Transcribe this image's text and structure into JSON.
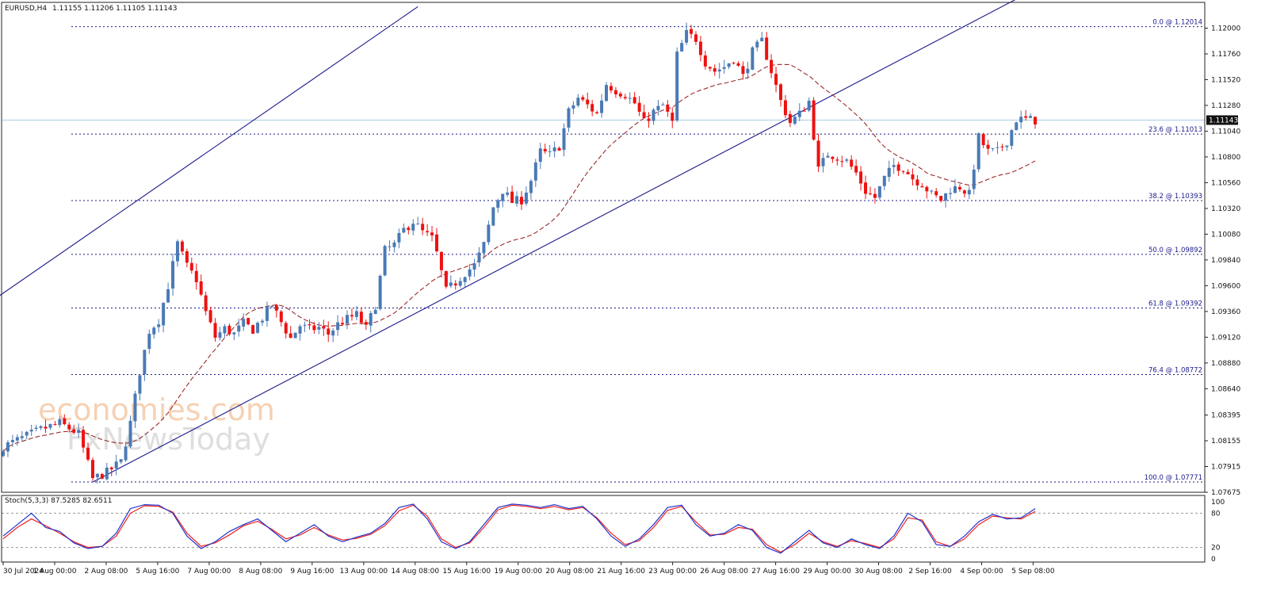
{
  "header": {
    "symbol": "EURUSD,H4",
    "ohlc": "1.11155 1.11206 1.11105 1.11143"
  },
  "watermark": {
    "line1": "economies.com",
    "line2": "FxNewsToday"
  },
  "colors": {
    "bull": "#4a7ab5",
    "bear": "#ee1111",
    "channel": "#1a1a8a",
    "fib": "#1a1a8a",
    "ma": "#9b2b2b",
    "stoch_main": "#2233cc",
    "stoch_signal": "#ee2222",
    "bid": "#a9cde6"
  },
  "chart_data": [
    {
      "type": "candlestick",
      "title": "EURUSD,H4",
      "ylim": [
        1.07675,
        1.1224
      ],
      "price_axis_labels": [
        "1.12000",
        "1.11760",
        "1.11520",
        "1.11280",
        "1.11040",
        "1.10800",
        "1.10560",
        "1.10320",
        "1.10080",
        "1.09840",
        "1.09600",
        "1.09360",
        "1.09120",
        "1.08880",
        "1.08640",
        "1.08395",
        "1.08155",
        "1.07915",
        "1.07675"
      ],
      "current_price": "1.11143",
      "time_labels": [
        "30 Jul 2024",
        "1 Aug 00:00",
        "2 Aug 08:00",
        "5 Aug 16:00",
        "7 Aug 00:00",
        "8 Aug 08:00",
        "9 Aug 16:00",
        "13 Aug 00:00",
        "14 Aug 08:00",
        "15 Aug 16:00",
        "19 Aug 00:00",
        "20 Aug 08:00",
        "21 Aug 16:00",
        "23 Aug 00:00",
        "26 Aug 08:00",
        "27 Aug 16:00",
        "29 Aug 00:00",
        "30 Aug 08:00",
        "2 Sep 16:00",
        "4 Sep 00:00",
        "5 Sep 08:00"
      ],
      "fibonacci": [
        {
          "label": "0.0 @ 1.12014",
          "level": 1.12014
        },
        {
          "label": "23.6 @ 1.11013",
          "level": 1.11013
        },
        {
          "label": "38.2 @ 1.10393",
          "level": 1.10393
        },
        {
          "label": "50.0 @ 1.09892",
          "level": 1.09892
        },
        {
          "label": "61.8 @ 1.09392",
          "level": 1.09392
        },
        {
          "label": "76.4 @ 1.08772",
          "level": 1.08772
        },
        {
          "label": "100.0 @ 1.07771",
          "level": 1.07771
        }
      ],
      "close_path": [
        [
          0,
          1.081
        ],
        [
          4,
          1.0818
        ],
        [
          8,
          1.0826
        ],
        [
          12,
          1.0832
        ],
        [
          16,
          1.0822
        ],
        [
          19,
          1.078
        ],
        [
          22,
          1.0786
        ],
        [
          25,
          1.0796
        ],
        [
          27,
          1.0832
        ],
        [
          29,
          1.088
        ],
        [
          31,
          1.0918
        ],
        [
          33,
          1.0928
        ],
        [
          35,
          1.096
        ],
        [
          37,
          1.0999
        ],
        [
          39,
          1.0978
        ],
        [
          41,
          1.0966
        ],
        [
          43,
          1.0935
        ],
        [
          45,
          1.0912
        ],
        [
          47,
          1.092
        ],
        [
          49,
          1.0915
        ],
        [
          51,
          1.0925
        ],
        [
          53,
          1.0919
        ],
        [
          55,
          1.093
        ],
        [
          57,
          1.0942
        ],
        [
          59,
          1.0926
        ],
        [
          61,
          1.0911
        ],
        [
          63,
          1.0923
        ],
        [
          65,
          1.0919
        ],
        [
          67,
          1.0921
        ],
        [
          69,
          1.0915
        ],
        [
          71,
          1.0924
        ],
        [
          73,
          1.0929
        ],
        [
          75,
          1.0933
        ],
        [
          77,
          1.092
        ],
        [
          79,
          1.0942
        ],
        [
          81,
          1.0993
        ],
        [
          83,
          1.0998
        ],
        [
          85,
          1.1012
        ],
        [
          87,
          1.102
        ],
        [
          89,
          1.101
        ],
        [
          91,
          1.1004
        ],
        [
          92,
          1.099
        ],
        [
          94,
          1.0955
        ],
        [
          96,
          1.0963
        ],
        [
          98,
          1.0972
        ],
        [
          100,
          1.0979
        ],
        [
          102,
          1.0998
        ],
        [
          104,
          1.1033
        ],
        [
          106,
          1.1049
        ],
        [
          108,
          1.1038
        ],
        [
          110,
          1.104
        ],
        [
          112,
          1.1058
        ],
        [
          114,
          1.1085
        ],
        [
          116,
          1.1082
        ],
        [
          118,
          1.109
        ],
        [
          120,
          1.1122
        ],
        [
          122,
          1.1135
        ],
        [
          124,
          1.1128
        ],
        [
          126,
          1.112
        ],
        [
          128,
          1.1148
        ],
        [
          130,
          1.1142
        ],
        [
          132,
          1.1138
        ],
        [
          134,
          1.113
        ],
        [
          136,
          1.1112
        ],
        [
          138,
          1.1122
        ],
        [
          140,
          1.1128
        ],
        [
          142,
          1.1112
        ],
        [
          143,
          1.1175
        ],
        [
          145,
          1.1195
        ],
        [
          147,
          1.119
        ],
        [
          149,
          1.1168
        ],
        [
          151,
          1.116
        ],
        [
          153,
          1.1164
        ],
        [
          155,
          1.1172
        ],
        [
          157,
          1.1155
        ],
        [
          159,
          1.1178
        ],
        [
          161,
          1.1188
        ],
        [
          163,
          1.116
        ],
        [
          165,
          1.1132
        ],
        [
          167,
          1.1112
        ],
        [
          169,
          1.112
        ],
        [
          171,
          1.1132
        ],
        [
          173,
          1.1068
        ],
        [
          175,
          1.1083
        ],
        [
          177,
          1.108
        ],
        [
          179,
          1.1076
        ],
        [
          181,
          1.1065
        ],
        [
          183,
          1.1048
        ],
        [
          185,
          1.1042
        ],
        [
          187,
          1.106
        ],
        [
          189,
          1.1072
        ],
        [
          191,
          1.107
        ],
        [
          193,
          1.106
        ],
        [
          195,
          1.1055
        ],
        [
          197,
          1.1045
        ],
        [
          199,
          1.104
        ],
        [
          201,
          1.105
        ],
        [
          203,
          1.1052
        ],
        [
          205,
          1.1045
        ],
        [
          207,
          1.1098
        ],
        [
          209,
          1.1085
        ],
        [
          211,
          1.1085
        ],
        [
          213,
          1.1095
        ],
        [
          215,
          1.1115
        ],
        [
          217,
          1.1115
        ],
        [
          219,
          1.1114
        ]
      ],
      "stochastic": {
        "label": "Stoch(5,3,3) 87.5285 82.6511",
        "ylim": [
          0,
          100
        ],
        "axis_labels": [
          "100",
          "80",
          "20",
          "0"
        ],
        "levels": [
          80,
          20
        ],
        "main": [
          [
            0,
            40
          ],
          [
            3,
            60
          ],
          [
            6,
            80
          ],
          [
            9,
            55
          ],
          [
            12,
            48
          ],
          [
            15,
            28
          ],
          [
            18,
            18
          ],
          [
            21,
            22
          ],
          [
            24,
            45
          ],
          [
            27,
            88
          ],
          [
            30,
            95
          ],
          [
            33,
            94
          ],
          [
            36,
            80
          ],
          [
            39,
            40
          ],
          [
            42,
            18
          ],
          [
            45,
            30
          ],
          [
            48,
            48
          ],
          [
            51,
            60
          ],
          [
            54,
            70
          ],
          [
            57,
            50
          ],
          [
            60,
            30
          ],
          [
            63,
            45
          ],
          [
            66,
            60
          ],
          [
            69,
            40
          ],
          [
            72,
            30
          ],
          [
            75,
            38
          ],
          [
            78,
            45
          ],
          [
            81,
            62
          ],
          [
            84,
            90
          ],
          [
            87,
            96
          ],
          [
            90,
            70
          ],
          [
            93,
            30
          ],
          [
            96,
            18
          ],
          [
            99,
            30
          ],
          [
            102,
            60
          ],
          [
            105,
            90
          ],
          [
            108,
            96
          ],
          [
            111,
            94
          ],
          [
            114,
            90
          ],
          [
            117,
            95
          ],
          [
            120,
            88
          ],
          [
            123,
            92
          ],
          [
            126,
            70
          ],
          [
            129,
            40
          ],
          [
            132,
            22
          ],
          [
            135,
            35
          ],
          [
            138,
            60
          ],
          [
            141,
            90
          ],
          [
            144,
            94
          ],
          [
            147,
            60
          ],
          [
            150,
            40
          ],
          [
            153,
            45
          ],
          [
            156,
            60
          ],
          [
            159,
            50
          ],
          [
            162,
            20
          ],
          [
            165,
            10
          ],
          [
            168,
            30
          ],
          [
            171,
            50
          ],
          [
            174,
            28
          ],
          [
            177,
            20
          ],
          [
            180,
            35
          ],
          [
            183,
            25
          ],
          [
            186,
            18
          ],
          [
            189,
            40
          ],
          [
            192,
            80
          ],
          [
            195,
            65
          ],
          [
            198,
            25
          ],
          [
            201,
            22
          ],
          [
            204,
            40
          ],
          [
            207,
            65
          ],
          [
            210,
            78
          ],
          [
            213,
            70
          ],
          [
            216,
            72
          ],
          [
            219,
            88
          ]
        ],
        "signal": [
          [
            0,
            35
          ],
          [
            3,
            55
          ],
          [
            6,
            70
          ],
          [
            9,
            58
          ],
          [
            12,
            45
          ],
          [
            15,
            30
          ],
          [
            18,
            20
          ],
          [
            21,
            22
          ],
          [
            24,
            40
          ],
          [
            27,
            80
          ],
          [
            30,
            93
          ],
          [
            33,
            92
          ],
          [
            36,
            82
          ],
          [
            39,
            45
          ],
          [
            42,
            22
          ],
          [
            45,
            28
          ],
          [
            48,
            42
          ],
          [
            51,
            58
          ],
          [
            54,
            66
          ],
          [
            57,
            52
          ],
          [
            60,
            35
          ],
          [
            63,
            42
          ],
          [
            66,
            55
          ],
          [
            69,
            42
          ],
          [
            72,
            33
          ],
          [
            75,
            36
          ],
          [
            78,
            43
          ],
          [
            81,
            58
          ],
          [
            84,
            84
          ],
          [
            87,
            94
          ],
          [
            90,
            75
          ],
          [
            93,
            35
          ],
          [
            96,
            20
          ],
          [
            99,
            28
          ],
          [
            102,
            55
          ],
          [
            105,
            86
          ],
          [
            108,
            94
          ],
          [
            111,
            92
          ],
          [
            114,
            88
          ],
          [
            117,
            92
          ],
          [
            120,
            86
          ],
          [
            123,
            90
          ],
          [
            126,
            72
          ],
          [
            129,
            45
          ],
          [
            132,
            25
          ],
          [
            135,
            32
          ],
          [
            138,
            55
          ],
          [
            141,
            85
          ],
          [
            144,
            92
          ],
          [
            147,
            65
          ],
          [
            150,
            42
          ],
          [
            153,
            43
          ],
          [
            156,
            55
          ],
          [
            159,
            52
          ],
          [
            162,
            25
          ],
          [
            165,
            12
          ],
          [
            168,
            25
          ],
          [
            171,
            45
          ],
          [
            174,
            30
          ],
          [
            177,
            22
          ],
          [
            180,
            32
          ],
          [
            183,
            27
          ],
          [
            186,
            20
          ],
          [
            189,
            35
          ],
          [
            192,
            72
          ],
          [
            195,
            68
          ],
          [
            198,
            30
          ],
          [
            201,
            22
          ],
          [
            204,
            35
          ],
          [
            207,
            60
          ],
          [
            210,
            75
          ],
          [
            213,
            72
          ],
          [
            216,
            70
          ],
          [
            219,
            83
          ]
        ]
      }
    }
  ]
}
